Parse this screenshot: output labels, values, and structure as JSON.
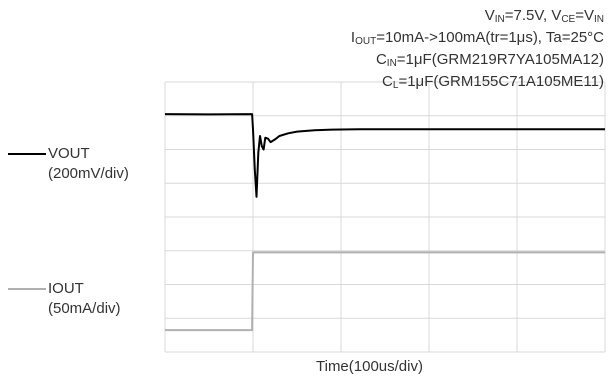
{
  "conditions": {
    "line1": {
      "v_in_prefix": "V",
      "v_in_sub": "IN",
      "v_in_rest": "=7.5V, ",
      "v_ce_prefix": "V",
      "v_ce_sub": "CE",
      "v_ce_mid": "=V",
      "v_ce_sub2": "IN"
    },
    "line2": {
      "i_prefix": "I",
      "i_sub": "OUT",
      "i_rest": "=10mA->100mA(tr=1μs),  Ta=25°C"
    },
    "line3": {
      "c_prefix": "C",
      "c_sub": "IN",
      "c_rest": "=1μF(GRM219R7YA105MA12)"
    },
    "line4": {
      "c_prefix": "C",
      "c_sub": "L",
      "c_rest": "=1μF(GRM155C71A105ME11)"
    }
  },
  "chart_data": {
    "type": "line",
    "title": "",
    "xlabel": "Time(100us/div)",
    "x_divisions": 5,
    "y_divisions": 8,
    "x_unit": "div",
    "xlim": [
      0,
      5
    ],
    "ylim": [
      0,
      8
    ],
    "grid": true,
    "series": [
      {
        "name": "VOUT",
        "scale": "(200mV/div)",
        "color": "#000000",
        "x": [
          0,
          0.5,
          0.99,
          1.0,
          1.02,
          1.04,
          1.06,
          1.08,
          1.1,
          1.12,
          1.14,
          1.17,
          1.2,
          1.25,
          1.3,
          1.4,
          1.5,
          1.7,
          1.9,
          2.2,
          2.6,
          3.0,
          3.5,
          4.0,
          4.5,
          5.0
        ],
        "y": [
          7.05,
          7.04,
          7.05,
          6.6,
          5.4,
          4.6,
          5.9,
          6.4,
          6.1,
          6.0,
          6.35,
          6.32,
          6.22,
          6.3,
          6.4,
          6.48,
          6.53,
          6.57,
          6.59,
          6.6,
          6.6,
          6.6,
          6.6,
          6.6,
          6.6,
          6.6
        ]
      },
      {
        "name": "IOUT",
        "scale": "(50mA/div)",
        "color": "#b0b0b0",
        "x": [
          0,
          0.99,
          1.0,
          5.0
        ],
        "y": [
          0.65,
          0.65,
          2.95,
          2.95
        ]
      }
    ]
  }
}
